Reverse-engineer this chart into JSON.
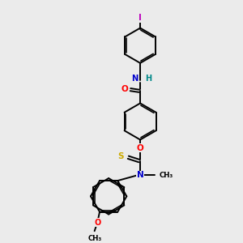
{
  "bg_color": "#ebebeb",
  "bond_color": "#000000",
  "atom_colors": {
    "O": "#ff0000",
    "N": "#0000cc",
    "S": "#ccaa00",
    "I": "#bb00bb",
    "H": "#008888",
    "C": "#000000"
  },
  "figsize": [
    3.0,
    3.0
  ],
  "dpi": 100
}
